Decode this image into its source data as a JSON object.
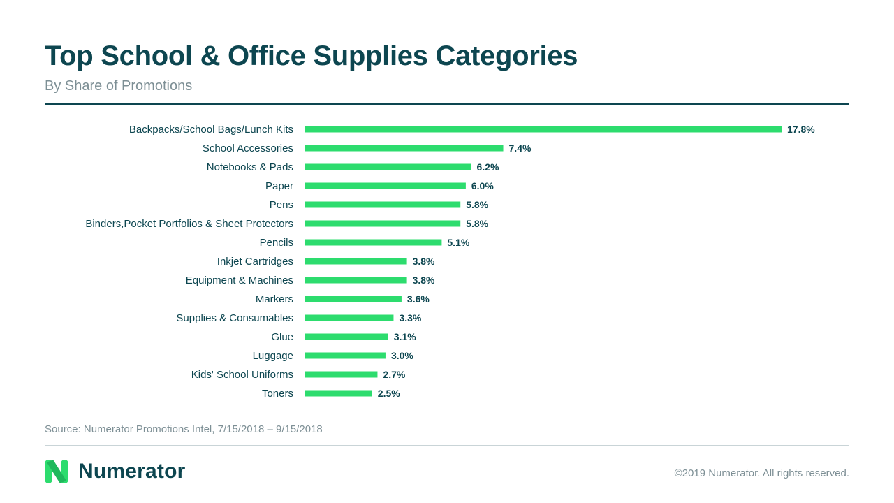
{
  "colors": {
    "title": "#0d4650",
    "bar": "#2ddc6e",
    "text": "#0d4650",
    "muted": "#7d8f95"
  },
  "footer": {
    "source": "Source: Numerator Promotions Intel, 7/15/2018 – 9/15/2018",
    "brand": "Numerator",
    "copyright": "©2019 Numerator. All rights reserved."
  },
  "chart_data": {
    "type": "bar",
    "orientation": "horizontal",
    "title": "Top School & Office Supplies Categories",
    "subtitle": "By Share of Promotions",
    "unit": "%",
    "grid": false,
    "legend": "none",
    "xlim": [
      0,
      20
    ],
    "categories": [
      "Backpacks/School Bags/Lunch Kits",
      "School Accessories",
      "Notebooks & Pads",
      "Paper",
      "Pens",
      "Binders,Pocket Portfolios & Sheet Protectors",
      "Pencils",
      "Inkjet Cartridges",
      "Equipment & Machines",
      "Markers",
      "Supplies & Consumables",
      "Glue",
      "Luggage",
      "Kids' School Uniforms",
      "Toners"
    ],
    "values": [
      17.8,
      7.4,
      6.2,
      6.0,
      5.8,
      5.8,
      5.1,
      3.8,
      3.8,
      3.6,
      3.3,
      3.1,
      3.0,
      2.7,
      2.5
    ],
    "data_labels": [
      "17.8%",
      "7.4%",
      "6.2%",
      "6.0%",
      "5.8%",
      "5.8%",
      "5.1%",
      "3.8%",
      "3.8%",
      "3.6%",
      "3.3%",
      "3.1%",
      "3.0%",
      "2.7%",
      "2.5%"
    ]
  }
}
